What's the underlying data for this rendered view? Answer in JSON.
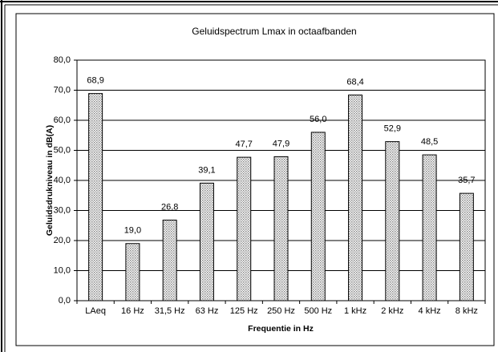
{
  "chart_data": {
    "type": "bar",
    "title": "Geluidspectrum Lmax in octaafbanden",
    "x_label": "Frequentie in Hz",
    "y_label": "Geluidsdrukniveau in dB(A)",
    "categories": [
      "LAeq",
      "16 Hz",
      "31,5 Hz",
      "63 Hz",
      "125 Hz",
      "250 Hz",
      "500 Hz",
      "1 kHz",
      "2 kHz",
      "4 kHz",
      "8 kHz"
    ],
    "values": [
      68.9,
      19.0,
      26.8,
      39.1,
      47.7,
      47.9,
      56.0,
      68.4,
      52.9,
      48.5,
      35.7
    ],
    "value_labels": [
      "68,9",
      "19,0",
      "26,8",
      "39,1",
      "47,7",
      "47,9",
      "56,0",
      "68,4",
      "52,9",
      "48,5",
      "35,7"
    ],
    "color": "#c8c8c8",
    "ylim": [
      0,
      80
    ],
    "yticks": [
      {
        "value": 0,
        "label": "0,0"
      },
      {
        "value": 10,
        "label": "10,0"
      },
      {
        "value": 20,
        "label": "20,0"
      },
      {
        "value": 30,
        "label": "30,0"
      },
      {
        "value": 40,
        "label": "40,0"
      },
      {
        "value": 50,
        "label": "50,0"
      },
      {
        "value": 60,
        "label": "60,0"
      },
      {
        "value": 70,
        "label": "70,0"
      },
      {
        "value": 80,
        "label": "80,0"
      }
    ],
    "grid": true
  }
}
